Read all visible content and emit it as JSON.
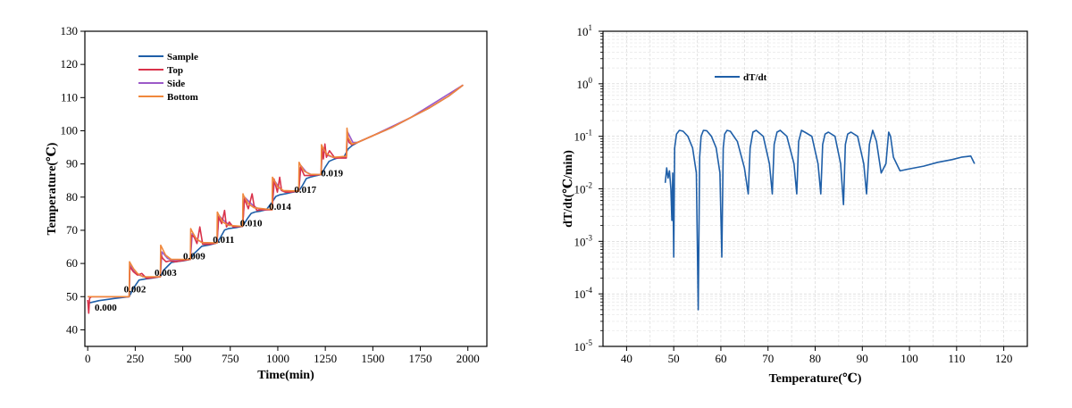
{
  "chart_data": [
    {
      "type": "line",
      "title": "",
      "xlabel": "Time(min)",
      "ylabel": "Temperature(℃)",
      "xlim": [
        -15,
        2100
      ],
      "ylim": [
        35,
        130
      ],
      "xticks": [
        0,
        250,
        500,
        750,
        1000,
        1250,
        1500,
        1750,
        2000
      ],
      "yticks": [
        40,
        50,
        60,
        70,
        80,
        90,
        100,
        110,
        120,
        130
      ],
      "grid": false,
      "legend_position": "top-left",
      "series": [
        {
          "name": "Sample",
          "color": "#1f5fa8",
          "x": [
            0,
            60,
            120,
            218,
            240,
            270,
            300,
            340,
            382,
            400,
            440,
            470,
            505,
            540,
            560,
            600,
            640,
            680,
            700,
            720,
            740,
            780,
            815,
            840,
            860,
            880,
            910,
            940,
            970,
            990,
            1010,
            1040,
            1070,
            1110,
            1130,
            1150,
            1170,
            1190,
            1230,
            1250,
            1270,
            1290,
            1310,
            1350,
            1370,
            1390,
            1420,
            1500,
            1600,
            1700,
            1800,
            1900,
            1975
          ],
          "y": [
            48.0,
            48.8,
            49.3,
            50.0,
            52.5,
            55.0,
            55.3,
            55.6,
            56.0,
            58.0,
            60.3,
            60.6,
            60.8,
            61.2,
            63.0,
            65.2,
            65.6,
            66.2,
            68.0,
            70.1,
            70.5,
            70.8,
            71.2,
            73.5,
            75.1,
            75.5,
            75.8,
            76.2,
            78.5,
            80.2,
            80.7,
            81.0,
            81.4,
            81.8,
            83.5,
            85.6,
            86.0,
            86.3,
            86.8,
            89.0,
            90.8,
            91.3,
            91.7,
            92.3,
            94.5,
            95.5,
            96.5,
            98.5,
            101.0,
            104.0,
            107.0,
            110.5,
            113.8
          ]
        },
        {
          "name": "Top",
          "color": "#d9324a",
          "x": [
            0,
            5,
            10,
            20,
            60,
            150,
            218,
            222,
            228,
            240,
            262,
            285,
            310,
            382,
            386,
            395,
            412,
            432,
            460,
            540,
            545,
            560,
            575,
            590,
            605,
            640,
            680,
            688,
            705,
            720,
            730,
            745,
            765,
            815,
            825,
            845,
            865,
            875,
            890,
            912,
            970,
            980,
            998,
            1010,
            1020,
            1040,
            1060,
            1110,
            1120,
            1140,
            1170,
            1228,
            1232,
            1240,
            1248,
            1256,
            1272,
            1300,
            1360,
            1365,
            1375,
            1390,
            1420,
            1500,
            1600,
            1700,
            1800,
            1900,
            1975
          ],
          "y": [
            49.0,
            45.0,
            49.5,
            50.0,
            50.0,
            50.0,
            50.0,
            59.0,
            58.5,
            57.5,
            56.5,
            57.0,
            55.5,
            56.0,
            62.5,
            61.5,
            60.5,
            60.8,
            60.5,
            61.2,
            68.5,
            68.0,
            66.0,
            71.0,
            65.8,
            65.8,
            66.2,
            74.0,
            72.0,
            76.0,
            71.0,
            72.5,
            71.0,
            71.2,
            79.5,
            76.5,
            81.0,
            77.5,
            76.0,
            76.2,
            76.2,
            85.5,
            81.5,
            86.0,
            82.0,
            81.5,
            81.5,
            81.8,
            89.0,
            86.5,
            86.5,
            86.8,
            95.5,
            91.5,
            96.0,
            92.0,
            94.0,
            91.8,
            91.8,
            99.5,
            96.5,
            95.8,
            96.5,
            98.5,
            101.0,
            104.0,
            107.0,
            110.5,
            113.8
          ]
        },
        {
          "name": "Side",
          "color": "#9b59c8",
          "x": [
            0,
            20,
            218,
            222,
            240,
            270,
            310,
            382,
            390,
            420,
            460,
            540,
            550,
            580,
            620,
            680,
            690,
            715,
            735,
            770,
            815,
            825,
            860,
            880,
            912,
            970,
            982,
            1000,
            1020,
            1060,
            1110,
            1122,
            1150,
            1175,
            1228,
            1234,
            1250,
            1265,
            1300,
            1360,
            1368,
            1395,
            1420,
            1500,
            1700,
            1975
          ],
          "y": [
            50.0,
            50.0,
            50.0,
            59.5,
            58.0,
            56.5,
            55.8,
            56.0,
            63.5,
            61.5,
            60.8,
            61.2,
            69.0,
            67.0,
            66.0,
            66.2,
            74.5,
            73.0,
            72.0,
            71.2,
            71.2,
            80.0,
            78.0,
            77.0,
            76.2,
            76.2,
            85.0,
            83.5,
            82.0,
            81.5,
            81.8,
            89.5,
            87.5,
            86.8,
            86.8,
            95.0,
            93.5,
            92.5,
            91.8,
            91.8,
            99.5,
            96.5,
            96.5,
            98.5,
            104.0,
            113.8
          ]
        },
        {
          "name": "Bottom",
          "color": "#f0883c",
          "x": [
            0,
            100,
            218,
            220,
            225,
            240,
            262,
            290,
            382,
            384,
            390,
            410,
            440,
            540,
            542,
            548,
            570,
            600,
            680,
            682,
            688,
            710,
            740,
            815,
            817,
            822,
            845,
            875,
            970,
            972,
            978,
            1000,
            1030,
            1110,
            1112,
            1118,
            1140,
            1170,
            1228,
            1230,
            1236,
            1258,
            1290,
            1362,
            1364,
            1370,
            1390,
            1420,
            1500,
            1600,
            1700,
            1800,
            1900,
            1975
          ],
          "y": [
            50.0,
            50.0,
            50.0,
            60.5,
            60.0,
            58.5,
            57.0,
            56.0,
            56.0,
            65.5,
            64.8,
            62.5,
            61.2,
            61.2,
            70.5,
            69.8,
            67.5,
            66.3,
            66.2,
            75.5,
            74.8,
            72.5,
            71.5,
            71.2,
            81.0,
            80.2,
            78.0,
            76.8,
            76.2,
            86.0,
            85.3,
            83.0,
            82.0,
            81.8,
            90.5,
            89.8,
            87.8,
            86.9,
            86.8,
            95.8,
            95.0,
            93.0,
            92.0,
            92.3,
            100.8,
            98.0,
            96.0,
            96.5,
            98.5,
            101.0,
            104.0,
            107.0,
            110.5,
            113.8
          ]
        }
      ],
      "annotations": [
        {
          "text": "0.000",
          "x": 95,
          "y": 46.8
        },
        {
          "text": "0.002",
          "x": 248,
          "y": 52.3
        },
        {
          "text": "0.003",
          "x": 410,
          "y": 57.3
        },
        {
          "text": "0.009",
          "x": 560,
          "y": 62.3
        },
        {
          "text": "0.011",
          "x": 715,
          "y": 67.3
        },
        {
          "text": "0.010",
          "x": 860,
          "y": 72.3
        },
        {
          "text": "0.014",
          "x": 1012,
          "y": 77.3
        },
        {
          "text": "0.017",
          "x": 1145,
          "y": 82.3
        },
        {
          "text": "0.019",
          "x": 1285,
          "y": 87.3
        }
      ]
    },
    {
      "type": "line",
      "title": "",
      "xlabel": "Temperature(℃)",
      "ylabel": "dT/dt(℃/min)",
      "xlim": [
        35,
        125
      ],
      "ylim_log10": [
        -5,
        1
      ],
      "yscale": "log",
      "xticks": [
        40,
        50,
        60,
        70,
        80,
        90,
        100,
        110,
        120
      ],
      "yticks": [
        "10^1",
        "10^0",
        "10^-1",
        "10^-2",
        "10^-3",
        "10^-4",
        "10^-5"
      ],
      "grid": true,
      "legend_position": "top-left",
      "series": [
        {
          "name": "dT/dt",
          "color": "#1f5fa8",
          "x": [
            48.2,
            48.5,
            48.8,
            49.1,
            49.4,
            49.6,
            49.8,
            50.0,
            50.2,
            50.6,
            51.2,
            52.0,
            53.0,
            54.0,
            54.8,
            55.2,
            55.5,
            55.8,
            56.3,
            57.0,
            58.0,
            59.0,
            59.8,
            60.2,
            60.5,
            60.8,
            61.3,
            62.0,
            63.5,
            65.0,
            65.8,
            66.2,
            66.8,
            67.5,
            69.0,
            70.3,
            70.9,
            71.3,
            71.9,
            72.6,
            74.0,
            75.5,
            76.1,
            76.5,
            77.1,
            77.8,
            79.3,
            80.6,
            81.2,
            81.6,
            82.1,
            82.8,
            84.2,
            85.4,
            86.0,
            86.4,
            86.9,
            87.6,
            89.0,
            90.3,
            90.9,
            91.5,
            92.2,
            93.0,
            94.0,
            95.0,
            95.6,
            96.0,
            96.6,
            98.0,
            100.0,
            103.0,
            106.0,
            109.0,
            111.0,
            113.0,
            113.8
          ],
          "y": [
            0.013,
            0.025,
            0.016,
            0.022,
            0.01,
            0.0025,
            0.02,
            0.0005,
            0.06,
            0.11,
            0.13,
            0.125,
            0.1,
            0.06,
            0.02,
            5e-05,
            0.04,
            0.1,
            0.13,
            0.128,
            0.1,
            0.06,
            0.02,
            0.0005,
            0.06,
            0.11,
            0.13,
            0.125,
            0.08,
            0.025,
            0.008,
            0.06,
            0.12,
            0.13,
            0.1,
            0.03,
            0.008,
            0.07,
            0.12,
            0.13,
            0.1,
            0.03,
            0.008,
            0.08,
            0.13,
            0.12,
            0.1,
            0.03,
            0.008,
            0.07,
            0.11,
            0.12,
            0.1,
            0.03,
            0.005,
            0.07,
            0.11,
            0.12,
            0.1,
            0.03,
            0.008,
            0.07,
            0.13,
            0.08,
            0.02,
            0.03,
            0.12,
            0.1,
            0.04,
            0.022,
            0.024,
            0.027,
            0.032,
            0.036,
            0.04,
            0.042,
            0.03
          ]
        }
      ]
    }
  ]
}
